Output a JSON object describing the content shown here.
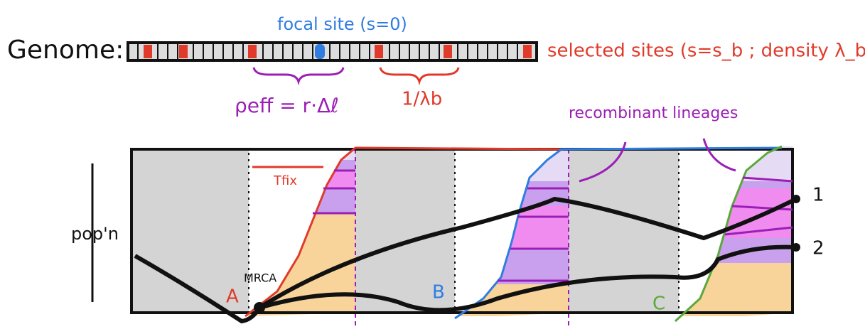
{
  "genome": {
    "label": "Genome:",
    "focal_label": "focal site (s=0)",
    "selected_label": "selected sites (s=s_b ; density λ_b)",
    "rho_label": "ρeff = r·Δℓ",
    "spacing_label": "1/λb"
  },
  "panel": {
    "annotation": "recombinant lineages",
    "tfix_label": "Tfix",
    "y_label": "pop'n",
    "mrca_label": "MRCA",
    "sweeps": [
      "A",
      "B",
      "C"
    ],
    "lineages": [
      "1",
      "2"
    ]
  }
}
